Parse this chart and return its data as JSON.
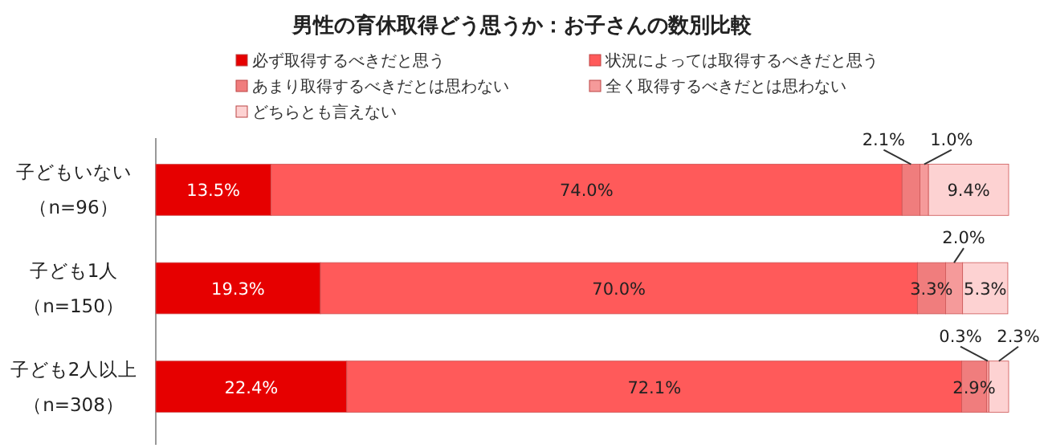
{
  "chart_data": {
    "type": "bar",
    "orientation": "horizontal",
    "stacked": true,
    "title": "男性の育休取得どう思うか：お子さんの数別比較",
    "categories": [
      "子どもいない（n=96）",
      "子ども1人（n=150）",
      "子ども2人以上（n=308）"
    ],
    "series": [
      {
        "name": "必ず取得するべきだと思う",
        "color": "#e60000",
        "values": [
          13.5,
          19.3,
          22.4
        ],
        "value_labels": [
          "13.5%",
          "19.3%",
          "22.4%"
        ]
      },
      {
        "name": "状況によっては取得するべきだと思う",
        "color": "#ff5a5a",
        "values": [
          74.0,
          70.0,
          72.1
        ],
        "value_labels": [
          "74.0%",
          "70.0%",
          "72.1%"
        ]
      },
      {
        "name": "あまり取得するべきだとは思わない",
        "color": "#f07d7d",
        "values": [
          2.1,
          3.3,
          2.9
        ],
        "value_labels": [
          "2.1%",
          "3.3%",
          "2.9%"
        ]
      },
      {
        "name": "全く取得するべきだとは思わない",
        "color": "#f59a9a",
        "values": [
          1.0,
          2.0,
          0.3
        ],
        "value_labels": [
          "1.0%",
          "2.0%",
          "0.3%"
        ]
      },
      {
        "name": "どちらとも言えない",
        "color": "#fdd2d2",
        "values": [
          9.4,
          5.3,
          2.3
        ],
        "value_labels": [
          "9.4%",
          "5.3%",
          "2.3%"
        ]
      }
    ],
    "tick_labels": "y",
    "legend": "top"
  }
}
